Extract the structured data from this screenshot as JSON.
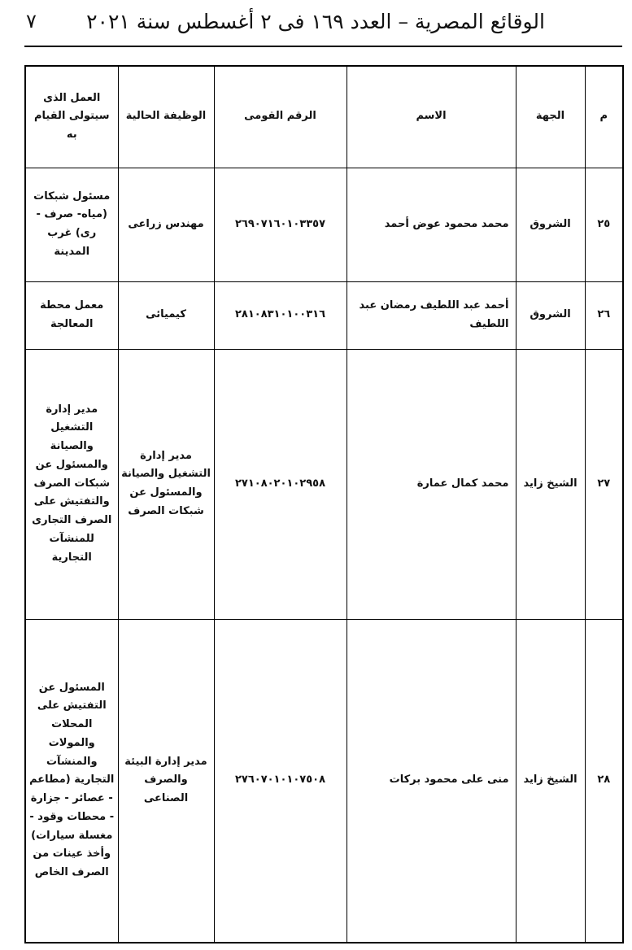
{
  "header": {
    "title": "الوقائع المصرية – العدد ١٦٩ فى ٢ أغسطس سنة ٢٠٢١",
    "page_number": "٧"
  },
  "table": {
    "columns": [
      "م",
      "الجهة",
      "الاسم",
      "الرقم القومى",
      "الوظيفة الحالية",
      "العمل الذى سيتولى القيام به"
    ],
    "rows": [
      [
        "٢٥",
        "الشروق",
        "محمد محمود عوض أحمد",
        "٢٦٩٠٧١٦٠١٠٣٣٥٧",
        "مهندس زراعى",
        "مسئول شبكات (مياه- صرف - رى) غرب المدينة"
      ],
      [
        "٢٦",
        "الشروق",
        "أحمد عبد اللطيف رمضان عبد اللطيف",
        "٢٨١٠٨٣١٠١٠٠٣١٦",
        "كيميائى",
        "معمل محطة المعالجة"
      ],
      [
        "٢٧",
        "الشيخ زايد",
        "محمد كمال عمارة",
        "٢٧١٠٨٠٢٠١٠٢٩٥٨",
        "مدير إدارة التشغيل والصيانة والمسئول عن شبكات الصرف",
        "مدير إدارة التشغيل والصيانة والمسئول عن شبكات الصرف والتفتيش على الصرف التجارى للمنشآت التجارية"
      ],
      [
        "٢٨",
        "الشيخ زايد",
        "منى على محمود بركات",
        "٢٧٦٠٧٠١٠١٠٧٥٠٨",
        "مدير إدارة البيئة والصرف الصناعى",
        "المسئول عن التفتيش على المحلات والمولات والمنشآت التجارية (مطاعم - عصائر - جزارة - محطات وقود - مغسلة سيارات) وأخذ عينات من الصرف الخاص"
      ]
    ]
  }
}
